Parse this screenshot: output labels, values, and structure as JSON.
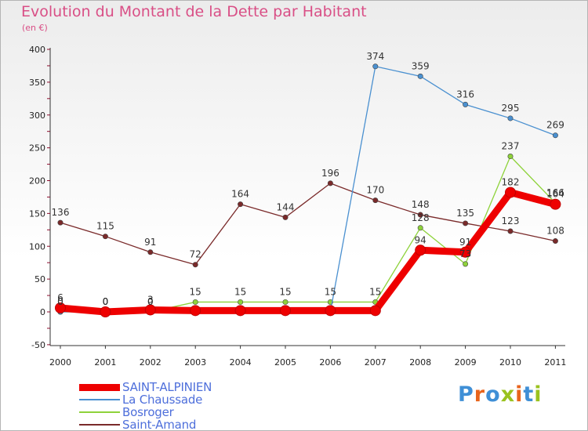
{
  "header": {
    "title": "Evolution du Montant de la Dette par Habitant",
    "subtitle": "(en €)"
  },
  "logo": {
    "text": "Proxiti",
    "colors": [
      "#3f8fd6",
      "#e8641c",
      "#3f8fd6",
      "#9ac21f",
      "#e8641c",
      "#3f8fd6",
      "#9ac21f"
    ]
  },
  "colors": {
    "title": "#d94f86",
    "legend_text": "#4e6fdb",
    "axis": "#333333",
    "grid_tick": "#8b0d2d"
  },
  "chart_data": {
    "type": "line",
    "categories": [
      "2000",
      "2001",
      "2002",
      "2003",
      "2004",
      "2005",
      "2006",
      "2007",
      "2008",
      "2009",
      "2010",
      "2011"
    ],
    "ylim": [
      -50,
      400
    ],
    "yticks": [
      -50,
      0,
      50,
      100,
      150,
      200,
      250,
      300,
      350,
      400
    ],
    "grid": false,
    "legend_position": "bottom-left",
    "series": [
      {
        "name": "SAINT-ALPINIEN",
        "color": "#ee0000",
        "values": [
          6,
          0,
          3,
          2,
          2,
          2,
          2,
          2,
          94,
          91,
          182,
          164
        ],
        "labels": [
          "6",
          "0",
          "3",
          "",
          "",
          "",
          "",
          "",
          "94",
          "91",
          "182",
          "164"
        ]
      },
      {
        "name": "La Chaussade",
        "color": "#4a90d0",
        "values": [
          0,
          0,
          0,
          0,
          0,
          0,
          0,
          374,
          359,
          316,
          295,
          269
        ],
        "labels": [
          "0",
          "0",
          "0",
          "",
          "",
          "",
          "",
          "374",
          "359",
          "316",
          "295",
          "269"
        ]
      },
      {
        "name": "Bosroger",
        "color": "#8ed23a",
        "values": [
          0,
          0,
          0,
          15,
          15,
          15,
          15,
          15,
          128,
          73,
          237,
          166
        ],
        "labels": [
          "0",
          "0",
          "0",
          "15",
          "15",
          "15",
          "15",
          "15",
          "128",
          "73",
          "237",
          "166"
        ]
      },
      {
        "name": "Saint-Amand",
        "color": "#7a2a2a",
        "values": [
          136,
          115,
          91,
          72,
          164,
          144,
          196,
          170,
          148,
          135,
          123,
          108
        ],
        "labels": [
          "136",
          "115",
          "91",
          "72",
          "164",
          "144",
          "196",
          "170",
          "148",
          "135",
          "123",
          "108"
        ]
      }
    ]
  }
}
